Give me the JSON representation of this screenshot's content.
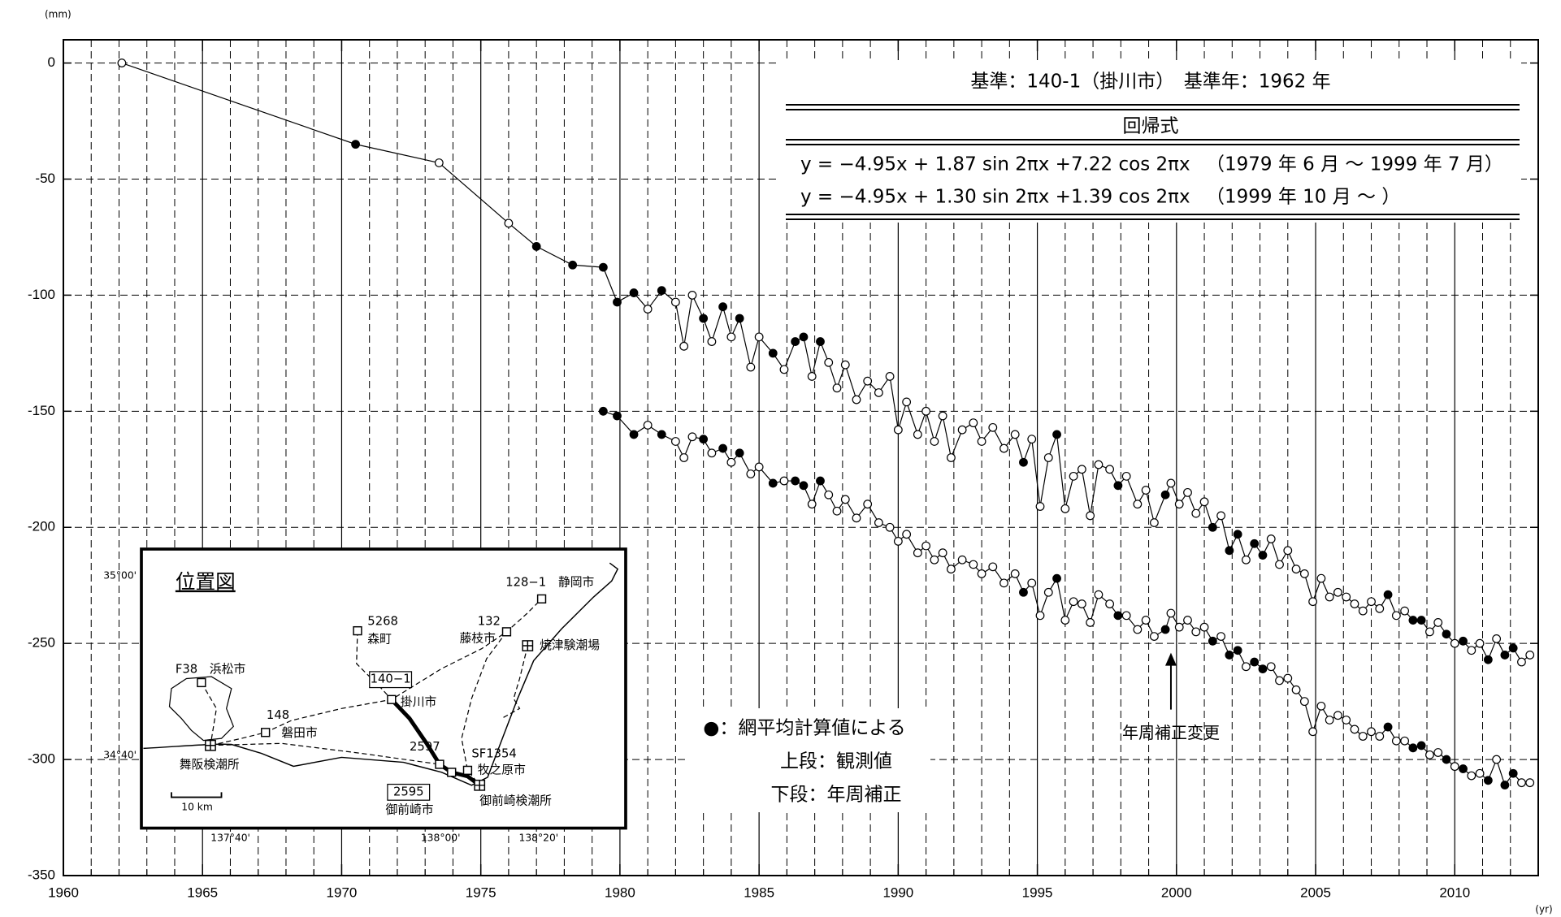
{
  "chart_data": {
    "type": "line",
    "y_unit": "(mm)",
    "x_unit": "(yr)",
    "xlim": [
      1960,
      2013
    ],
    "ylim": [
      -350,
      10
    ],
    "xticks": [
      1960,
      1965,
      1970,
      1975,
      1980,
      1985,
      1990,
      1995,
      2000,
      2005,
      2010
    ],
    "xminorticks": [
      1961,
      1962,
      1963,
      1964,
      1966,
      1967,
      1968,
      1969,
      1971,
      1972,
      1973,
      1974,
      1976,
      1977,
      1978,
      1979,
      1981,
      1982,
      1983,
      1984,
      1986,
      1987,
      1988,
      1989,
      1991,
      1992,
      1993,
      1994,
      1996,
      1997,
      1998,
      1999,
      2001,
      2002,
      2003,
      2004,
      2006,
      2007,
      2008,
      2009,
      2011,
      2012
    ],
    "yticks": [
      0,
      -50,
      -100,
      -150,
      -200,
      -250,
      -300,
      -350
    ],
    "grid": true,
    "series": [
      {
        "name": "上段：観測値",
        "color": "#000000",
        "x": [
          1962.1,
          1970.5,
          1973.5,
          1976,
          1977,
          1978.3,
          1979.4,
          1979.9,
          1980.5,
          1981,
          1981.5,
          1982,
          1982.3,
          1982.6,
          1983,
          1983.3,
          1983.7,
          1984,
          1984.3,
          1984.7,
          1985,
          1985.5,
          1985.9,
          1986.3,
          1986.6,
          1986.9,
          1987.2,
          1987.5,
          1987.8,
          1988.1,
          1988.5,
          1988.9,
          1989.3,
          1989.7,
          1990,
          1990.3,
          1990.7,
          1991,
          1991.3,
          1991.6,
          1991.9,
          1992.3,
          1992.7,
          1993,
          1993.4,
          1993.8,
          1994.2,
          1994.5,
          1994.8,
          1995.1,
          1995.4,
          1995.7,
          1996,
          1996.3,
          1996.6,
          1996.9,
          1997.2,
          1997.6,
          1997.9,
          1998.2,
          1998.6,
          1998.9,
          1999.2,
          1999.6,
          1999.8,
          2000.1,
          2000.4,
          2000.7,
          2001,
          2001.3,
          2001.6,
          2001.9,
          2002.2,
          2002.5,
          2002.8,
          2003.1,
          2003.4,
          2003.7,
          2004,
          2004.3,
          2004.6,
          2004.9,
          2005.2,
          2005.5,
          2005.8,
          2006.1,
          2006.4,
          2006.7,
          2007,
          2007.3,
          2007.6,
          2007.9,
          2008.2,
          2008.5,
          2008.8,
          2009.1,
          2009.4,
          2009.7,
          2010,
          2010.3,
          2010.6,
          2010.9,
          2011.2,
          2011.5,
          2011.8,
          2012.1,
          2012.4,
          2012.7
        ],
        "values": [
          0,
          -35,
          -43,
          -69,
          -79,
          -87,
          -88,
          -103,
          -99,
          -106,
          -98,
          -103,
          -122,
          -100,
          -110,
          -120,
          -105,
          -118,
          -110,
          -131,
          -118,
          -125,
          -132,
          -120,
          -118,
          -135,
          -120,
          -129,
          -140,
          -130,
          -145,
          -137,
          -142,
          -135,
          -158,
          -146,
          -160,
          -150,
          -163,
          -152,
          -170,
          -158,
          -155,
          -163,
          -157,
          -166,
          -160,
          -172,
          -162,
          -191,
          -170,
          -160,
          -192,
          -178,
          -175,
          -195,
          -173,
          -175,
          -182,
          -178,
          -190,
          -184,
          -198,
          -186,
          -181,
          -190,
          -185,
          -194,
          -189,
          -200,
          -195,
          -210,
          -203,
          -214,
          -207,
          -212,
          -205,
          -216,
          -210,
          -218,
          -220,
          -232,
          -222,
          -230,
          -228,
          -230,
          -233,
          -236,
          -232,
          -235,
          -229,
          -238,
          -236,
          -240,
          -240,
          -245,
          -241,
          -246,
          -250,
          -249,
          -253,
          -250,
          -257,
          -248,
          -255,
          -252,
          -258,
          -255
        ],
        "filled": [
          0,
          1,
          0,
          0,
          1,
          1,
          1,
          1,
          1,
          0,
          1,
          0,
          0,
          0,
          1,
          0,
          1,
          0,
          1,
          0,
          0,
          1,
          0,
          1,
          1,
          0,
          1,
          0,
          0,
          0,
          0,
          0,
          0,
          0,
          0,
          0,
          0,
          0,
          0,
          0,
          0,
          0,
          0,
          0,
          0,
          0,
          0,
          1,
          0,
          0,
          0,
          1,
          0,
          0,
          0,
          0,
          0,
          0,
          1,
          0,
          0,
          0,
          0,
          1,
          0,
          0,
          0,
          0,
          0,
          1,
          0,
          1,
          1,
          0,
          1,
          1,
          0,
          0,
          0,
          0,
          0,
          0,
          0,
          0,
          0,
          0,
          0,
          0,
          0,
          0,
          1,
          0,
          0,
          1,
          1,
          0,
          0,
          1,
          0,
          1,
          0,
          0,
          1,
          0,
          1,
          1,
          0,
          0
        ]
      },
      {
        "name": "下段：年周補正",
        "color": "#000000",
        "x": [
          1979.4,
          1979.9,
          1980.5,
          1981,
          1981.5,
          1982,
          1982.3,
          1982.6,
          1983,
          1983.3,
          1983.7,
          1984,
          1984.3,
          1984.7,
          1985,
          1985.5,
          1985.9,
          1986.3,
          1986.6,
          1986.9,
          1987.2,
          1987.5,
          1987.8,
          1988.1,
          1988.5,
          1988.9,
          1989.3,
          1989.7,
          1990,
          1990.3,
          1990.7,
          1991,
          1991.3,
          1991.6,
          1991.9,
          1992.3,
          1992.7,
          1993,
          1993.4,
          1993.8,
          1994.2,
          1994.5,
          1994.8,
          1995.1,
          1995.4,
          1995.7,
          1996,
          1996.3,
          1996.6,
          1996.9,
          1997.2,
          1997.6,
          1997.9,
          1998.2,
          1998.6,
          1998.9,
          1999.2,
          1999.6,
          1999.8,
          2000.1,
          2000.4,
          2000.7,
          2001,
          2001.3,
          2001.6,
          2001.9,
          2002.2,
          2002.5,
          2002.8,
          2003.1,
          2003.4,
          2003.7,
          2004,
          2004.3,
          2004.6,
          2004.9,
          2005.2,
          2005.5,
          2005.8,
          2006.1,
          2006.4,
          2006.7,
          2007,
          2007.3,
          2007.6,
          2007.9,
          2008.2,
          2008.5,
          2008.8,
          2009.1,
          2009.4,
          2009.7,
          2010,
          2010.3,
          2010.6,
          2010.9,
          2011.2,
          2011.5,
          2011.8,
          2012.1,
          2012.4,
          2012.7
        ],
        "values": [
          -150,
          -152,
          -160,
          -156,
          -160,
          -163,
          -170,
          -161,
          -162,
          -168,
          -166,
          -172,
          -168,
          -177,
          -174,
          -181,
          -180,
          -180,
          -182,
          -190,
          -180,
          -186,
          -193,
          -188,
          -196,
          -190,
          -198,
          -200,
          -206,
          -203,
          -211,
          -208,
          -214,
          -211,
          -218,
          -214,
          -216,
          -220,
          -217,
          -224,
          -220,
          -228,
          -224,
          -238,
          -228,
          -222,
          -240,
          -232,
          -233,
          -241,
          -229,
          -233,
          -238,
          -238,
          -244,
          -240,
          -247,
          -244,
          -237,
          -243,
          -240,
          -245,
          -243,
          -249,
          -247,
          -255,
          -253,
          -260,
          -258,
          -261,
          -260,
          -266,
          -265,
          -270,
          -275,
          -288,
          -277,
          -283,
          -281,
          -283,
          -287,
          -290,
          -288,
          -290,
          -286,
          -292,
          -292,
          -295,
          -294,
          -298,
          -297,
          -300,
          -303,
          -304,
          -307,
          -306,
          -309,
          -300,
          -311,
          -306,
          -310,
          -310
        ],
        "filled": [
          1,
          1,
          1,
          0,
          1,
          0,
          0,
          0,
          1,
          0,
          1,
          0,
          1,
          0,
          0,
          1,
          0,
          1,
          1,
          0,
          1,
          0,
          0,
          0,
          0,
          0,
          0,
          0,
          0,
          0,
          0,
          0,
          0,
          0,
          0,
          0,
          0,
          0,
          0,
          0,
          0,
          1,
          0,
          0,
          0,
          1,
          0,
          0,
          0,
          0,
          0,
          0,
          1,
          0,
          0,
          0,
          0,
          1,
          0,
          0,
          0,
          0,
          0,
          1,
          0,
          1,
          1,
          0,
          1,
          1,
          0,
          0,
          0,
          0,
          0,
          0,
          0,
          0,
          0,
          0,
          0,
          0,
          0,
          0,
          1,
          0,
          0,
          1,
          1,
          0,
          0,
          1,
          0,
          1,
          0,
          0,
          1,
          0,
          1,
          1,
          0,
          0
        ]
      }
    ],
    "filled_marker_label": "●：網平均計算値による",
    "info_box": {
      "reference": "基準：140-1（掛川市）　基準年：1962 年",
      "header": "回帰式",
      "rows": [
        [
          "y = −4.95x + 1.87 sin 2πx +7.22 cos 2πx",
          "（1979 年 6 月 ～ 1999 年 7 月）"
        ],
        [
          "y = −4.95x + 1.30 sin 2πx +1.39 cos 2πx",
          "（1999 年 10 月 ～ ）"
        ]
      ]
    },
    "annotation": {
      "text": "年周補正変更",
      "x": 1999.8,
      "y": -254
    }
  },
  "inset_map": {
    "title": "位置図",
    "lat_labels": [
      "35°00'",
      "34°40'"
    ],
    "lon_labels": [
      "137°40'",
      "138°00'",
      "138°20'"
    ],
    "scale": "10 km",
    "labels": [
      "128−1　静岡市",
      "5268",
      "森町",
      "132",
      "藤枝市",
      "焼津験潮場",
      "F38　浜松市",
      "140−1",
      "掛川市",
      "148",
      "磐田市",
      "舞阪検潮所",
      "2597",
      "SF1354",
      "牧之原市",
      "2595",
      "御前崎市",
      "御前崎検潮所"
    ]
  }
}
